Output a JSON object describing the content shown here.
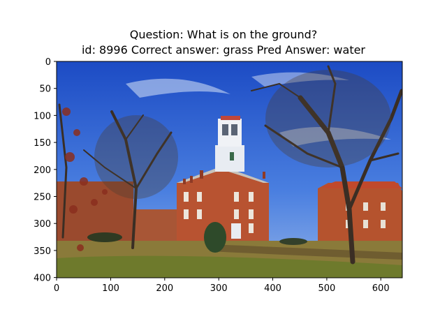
{
  "header": {
    "question": "Question: What is on the ground?",
    "meta": "id: 8996 Correct answer: grass Pred Answer: water"
  },
  "axes": {
    "x_ticks": [
      "0",
      "100",
      "200",
      "300",
      "400",
      "500",
      "600"
    ],
    "y_ticks": [
      "0",
      "50",
      "100",
      "150",
      "200",
      "250",
      "300",
      "350",
      "400"
    ],
    "xlim": [
      0,
      640
    ],
    "ylim": [
      0,
      400
    ]
  },
  "image": {
    "description_icon": "campus-photo-icon",
    "colors": {
      "sky": "#2f5fd0",
      "brick": "#b5532e",
      "grass": "#8a7a3a",
      "tower": "#e8ecf2"
    }
  }
}
